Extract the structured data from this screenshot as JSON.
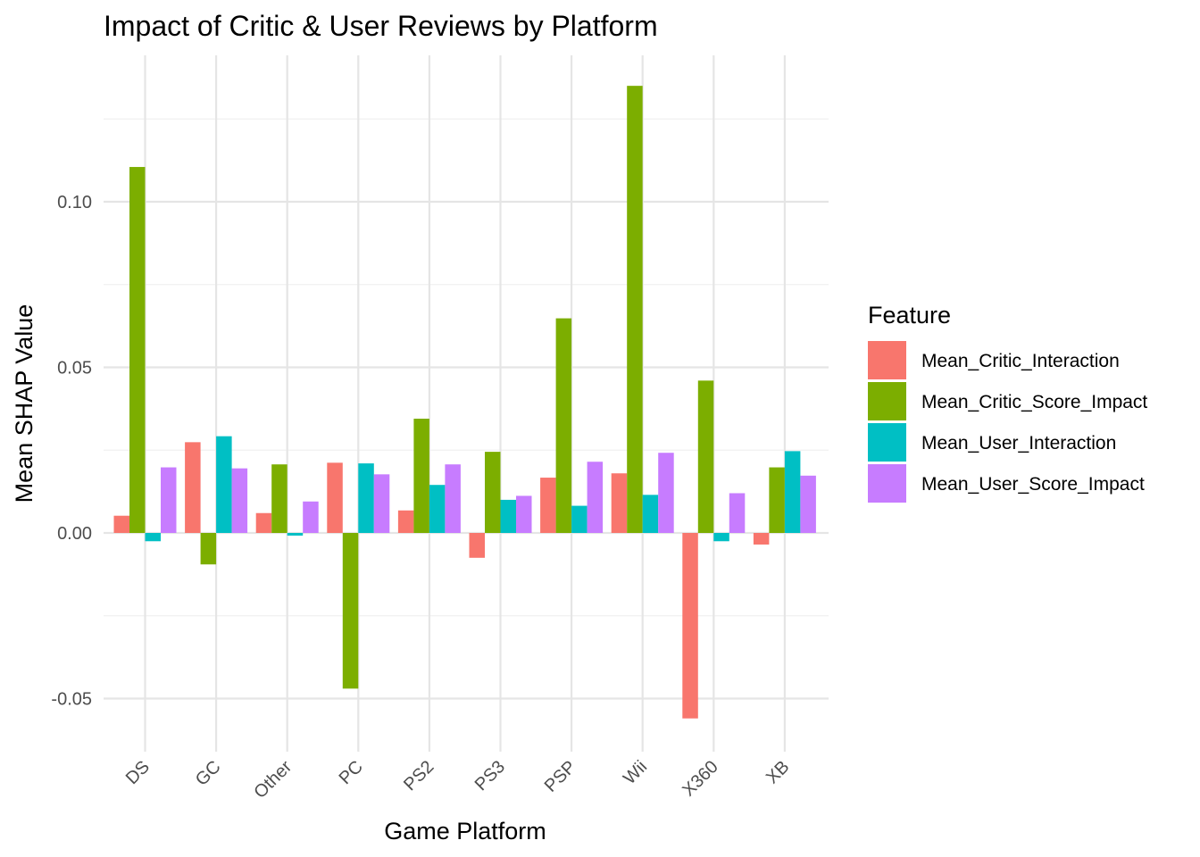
{
  "chart_data": {
    "type": "bar",
    "title": "Impact of Critic & User Reviews by Platform",
    "xlabel": "Game Platform",
    "ylabel": "Mean SHAP Value",
    "categories": [
      "DS",
      "GC",
      "Other",
      "PC",
      "PS2",
      "PS3",
      "PSP",
      "Wii",
      "X360",
      "XB"
    ],
    "ylim": [
      -0.065,
      0.145
    ],
    "yticks": [
      -0.05,
      0.0,
      0.05,
      0.1
    ],
    "ytick_labels": [
      "-0.05",
      "0.00",
      "0.05",
      "0.10"
    ],
    "grid": true,
    "legend": {
      "title": "Feature",
      "position": "right"
    },
    "series": [
      {
        "name": "Mean_Critic_Interaction",
        "color": "#F8766D",
        "values": [
          0.0052,
          0.0274,
          0.006,
          0.0212,
          0.0068,
          -0.0075,
          0.0167,
          0.018,
          -0.056,
          -0.0035
        ]
      },
      {
        "name": "Mean_Critic_Score_Impact",
        "color": "#7CAE00",
        "values": [
          0.1105,
          -0.0095,
          0.0207,
          -0.047,
          0.0345,
          0.0245,
          0.0648,
          0.135,
          0.046,
          0.0198
        ]
      },
      {
        "name": "Mean_User_Interaction",
        "color": "#00BFC4",
        "values": [
          -0.0025,
          0.0292,
          -0.0008,
          0.021,
          0.0145,
          0.01,
          0.0082,
          0.0115,
          -0.0025,
          0.0247
        ]
      },
      {
        "name": "Mean_User_Score_Impact",
        "color": "#C77CFF",
        "values": [
          0.0198,
          0.0195,
          0.0095,
          0.0177,
          0.0207,
          0.0112,
          0.0215,
          0.0242,
          0.012,
          0.0173
        ]
      }
    ]
  }
}
